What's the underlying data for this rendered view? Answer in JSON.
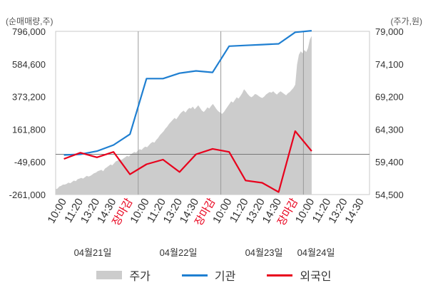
{
  "chart_data": {
    "type": "line",
    "left_axis_unit": "(순매매량,주)",
    "right_axis_unit": "(주가,원)",
    "left_ticks": [
      "796,000",
      "584,600",
      "373,200",
      "161,800",
      "-49,600",
      "-261,000"
    ],
    "right_ticks": [
      "79,000",
      "74,100",
      "69,200",
      "64,300",
      "59,400",
      "54,500"
    ],
    "ylim_left": [
      -261000,
      796000
    ],
    "ylim_right": [
      54500,
      79000
    ],
    "x_tick_labels": [
      "10:00",
      "11:20",
      "13:20",
      "14:30",
      "장마감",
      "10:00",
      "11:20",
      "13:20",
      "14:30",
      "장마감",
      "10:00",
      "11:20",
      "13:20",
      "14:30",
      "장마감",
      "10:00",
      "11:20",
      "13:20",
      "14:30"
    ],
    "date_labels": [
      "04월21일",
      "04월22일",
      "04월23일",
      "04월24일"
    ],
    "highlight_color": "#e8001c",
    "series": [
      {
        "name": "주가",
        "color": "#cccccc",
        "values": [
          55300,
          55400,
          55700,
          55800,
          56000,
          56000,
          56100,
          56300,
          56200,
          56400,
          56600,
          56500,
          56800,
          56900,
          57000,
          56900,
          57100,
          57300,
          57200,
          57300,
          57500,
          57700,
          57800,
          58000,
          58100,
          58200,
          58000,
          58400,
          58600,
          58800,
          59000,
          58900,
          59200,
          59500,
          59600,
          59800,
          59700,
          59900,
          60100,
          60300,
          60200,
          60500,
          60700,
          60900,
          60800,
          61100,
          61300,
          61200,
          61500,
          61700,
          61600,
          61900,
          62200,
          62400,
          62300,
          62700,
          63000,
          63400,
          63700,
          64000,
          64400,
          64700,
          65100,
          65400,
          65700,
          66000,
          65800,
          66200,
          66600,
          66900,
          67100,
          66800,
          67200,
          67500,
          67400,
          67700,
          67300,
          67600,
          67900,
          67500,
          67100,
          66900,
          67200,
          67600,
          67400,
          67800,
          68100,
          67700,
          67300,
          67000,
          66800,
          66600,
          66900,
          67300,
          67700,
          68100,
          68500,
          68300,
          68700,
          69100,
          68900,
          69300,
          69700,
          70300,
          70000,
          69600,
          69300,
          69100,
          69300,
          69600,
          69500,
          69300,
          69100,
          69000,
          69200,
          69500,
          69700,
          69900,
          69800,
          70000,
          69700,
          69500,
          69800,
          70000,
          69800,
          69600,
          69400,
          69700,
          69900,
          70200,
          70500,
          71000,
          74000,
          75500,
          76000,
          75700,
          76200,
          75900,
          76500,
          77800,
          78300
        ]
      },
      {
        "name": "기관",
        "color": "#1f7fd1",
        "values": [
          -5000,
          0,
          20000,
          60000,
          130000,
          490000,
          490000,
          525000,
          540000,
          530000,
          700000,
          705000,
          710000,
          715000,
          790000,
          800000
        ]
      },
      {
        "name": "외국인",
        "color": "#e8001c",
        "values": [
          -30000,
          10000,
          -20000,
          15000,
          -130000,
          -65000,
          -35000,
          -115000,
          0,
          35000,
          15000,
          -170000,
          -185000,
          -245000,
          150000,
          20000
        ]
      }
    ]
  }
}
